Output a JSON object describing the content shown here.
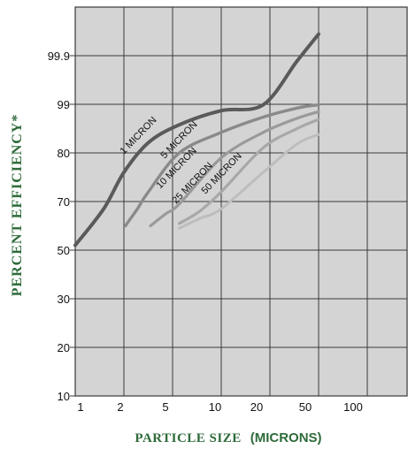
{
  "chart_data": {
    "type": "line",
    "xlabel_main": "PARTICLE SIZE",
    "xlabel_unit": "(MICRONS)",
    "ylabel": "PERCENT EFFICIENCY*",
    "x_ticks": [
      "1",
      "2",
      "5",
      "10",
      "20",
      "50",
      "100"
    ],
    "y_ticks": [
      "10",
      "20",
      "30",
      "50",
      "70",
      "80",
      "99",
      "99.9"
    ],
    "grid": true,
    "colors": {
      "background": "#d4d4d4",
      "grid": "#3a3a3a",
      "label_green": "#2e6b3a"
    },
    "series": [
      {
        "name": "1 MICRON",
        "color": "#5a5a5a",
        "points": [
          [
            1,
            52
          ],
          [
            1.5,
            67
          ],
          [
            2,
            76
          ],
          [
            3,
            84
          ],
          [
            5,
            91
          ],
          [
            10,
            96.5
          ],
          [
            20,
            98.8
          ],
          [
            35,
            99.8
          ],
          [
            50,
            100.3
          ]
        ]
      },
      {
        "name": "5 MICRON",
        "color": "#8a8a8a",
        "points": [
          [
            2.05,
            60
          ],
          [
            2.5,
            67
          ],
          [
            3,
            72
          ],
          [
            5,
            80
          ],
          [
            10,
            88
          ],
          [
            20,
            94
          ],
          [
            35,
            97.5
          ],
          [
            50,
            98.8
          ]
        ]
      },
      {
        "name": "10 MICRON",
        "color": "#9a9a9a",
        "points": [
          [
            3.1,
            60
          ],
          [
            4,
            65
          ],
          [
            5,
            69
          ],
          [
            10,
            79
          ],
          [
            20,
            88
          ],
          [
            35,
            93.5
          ],
          [
            50,
            96.1
          ]
        ]
      },
      {
        "name": "25 MICRON",
        "color": "#a8a8a8",
        "points": [
          [
            5,
            61
          ],
          [
            7,
            66
          ],
          [
            10,
            72
          ],
          [
            20,
            82
          ],
          [
            35,
            89.5
          ],
          [
            50,
            93.1
          ]
        ]
      },
      {
        "name": "50 MICRON",
        "color": "#bdbdbd",
        "points": [
          [
            5,
            59
          ],
          [
            7,
            63
          ],
          [
            10,
            67
          ],
          [
            20,
            76
          ],
          [
            35,
            83.5
          ],
          [
            50,
            87.2
          ]
        ]
      }
    ]
  }
}
